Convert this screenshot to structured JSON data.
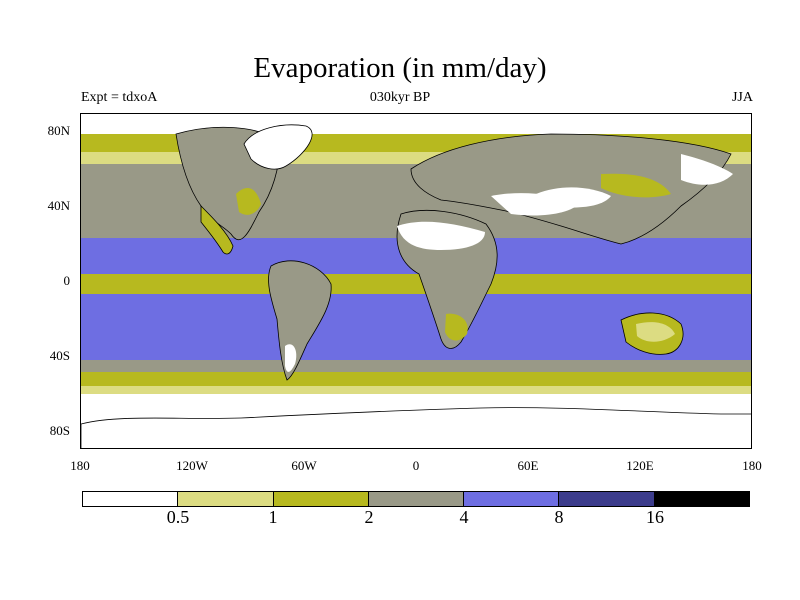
{
  "title": "Evaporation (in mm/day)",
  "subtitle_left": "Expt = tdxoA",
  "subtitle_center": "030kyr BP",
  "subtitle_right": "JJA",
  "lat_ticks": [
    "80N",
    "40N",
    "0",
    "40S",
    "80S"
  ],
  "lon_ticks": [
    "180",
    "120W",
    "60W",
    "0",
    "60E",
    "120E",
    "180"
  ],
  "colorbar": {
    "labels": [
      "0.5",
      "1",
      "2",
      "4",
      "8",
      "16"
    ],
    "colors": [
      "#ffffff",
      "#dcdc82",
      "#b7b91f",
      "#999987",
      "#6e6ee2",
      "#3c3c8c",
      "#000000"
    ]
  },
  "palette": {
    "white": "#ffffff",
    "pale": "#dcdc82",
    "olive": "#b7b91f",
    "gray": "#999987",
    "blue": "#6e6ee2",
    "navy": "#3c3c8c",
    "black": "#000000"
  }
}
